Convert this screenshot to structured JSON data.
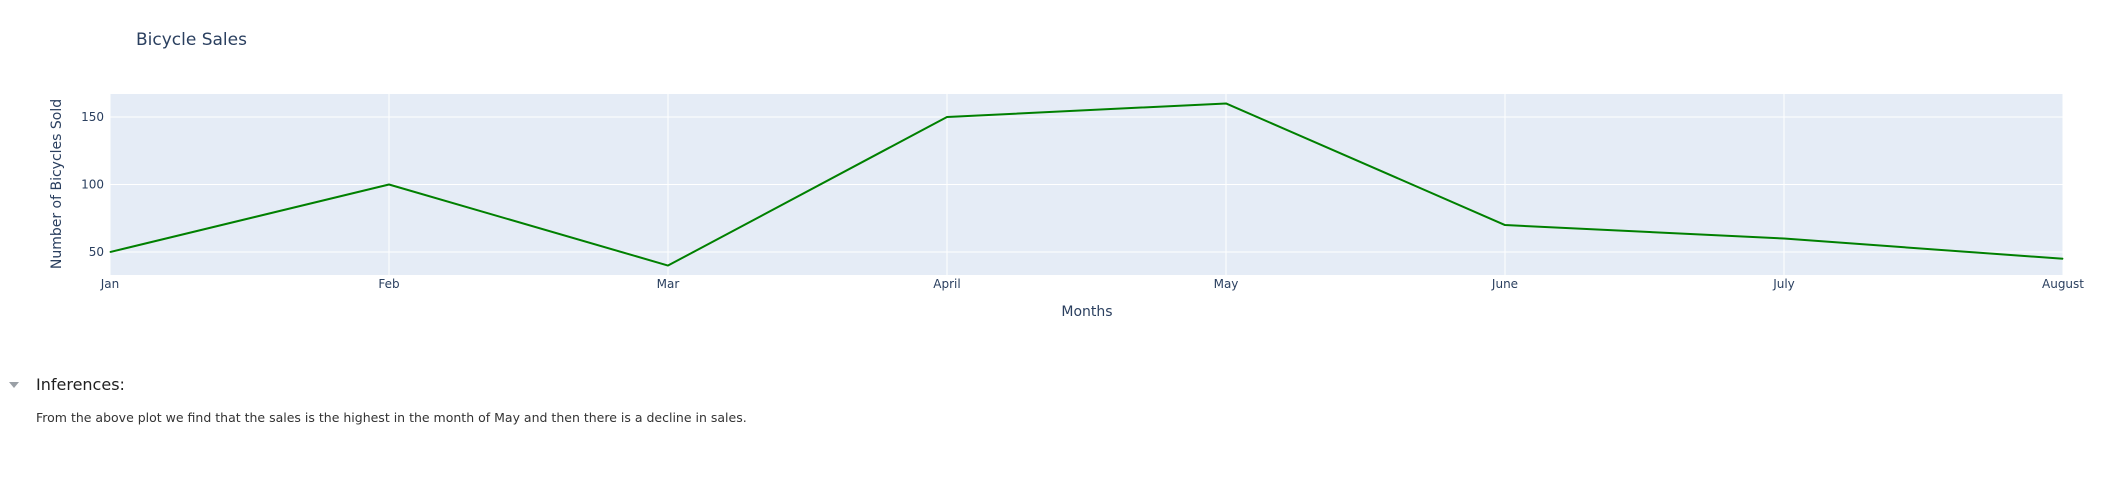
{
  "chart_data": {
    "type": "line",
    "title": "Bicycle Sales",
    "xlabel": "Months",
    "ylabel": "Number of Bicycles Sold",
    "categories": [
      "Jan",
      "Feb",
      "Mar",
      "April",
      "May",
      "June",
      "July",
      "August"
    ],
    "series": [
      {
        "values": [
          50,
          100,
          40,
          150,
          160,
          70,
          60,
          45
        ],
        "color": "#008000"
      }
    ],
    "ylim": [
      33,
      167
    ],
    "yticks": [
      50,
      100,
      150
    ],
    "grid": true,
    "legend": "none",
    "plot_background": "#e5ecf6"
  },
  "inferences": {
    "heading": "Inferences:",
    "text": "From the above plot we find that the sales is the highest in the month of May and then there is a decline in sales."
  }
}
